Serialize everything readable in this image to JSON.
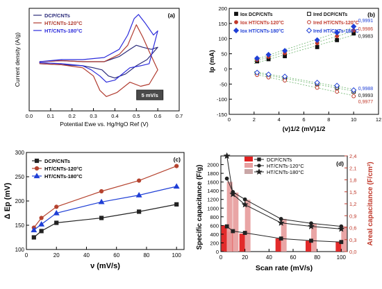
{
  "chart_data": [
    {
      "type": "line",
      "panel_label": "(a)",
      "xlabel": "Potential Ewe vs. Hg/HgO Ref (V)",
      "ylabel": "Current density (A/g)",
      "xlim": [
        0.0,
        0.7
      ],
      "xticks": [
        "0.0",
        "0.1",
        "0.2",
        "0.3",
        "0.4",
        "0.5",
        "0.6",
        "0.7"
      ],
      "y_ticks_visible": false,
      "annotation": "5 mV/s",
      "legend_position": "top-left",
      "series": [
        {
          "name": "DCP/CNTs",
          "color": "#2b2b7a",
          "x": [
            0.05,
            0.15,
            0.25,
            0.35,
            0.42,
            0.47,
            0.5,
            0.53,
            0.57,
            0.6,
            0.55,
            0.5,
            0.45,
            0.4,
            0.37,
            0.34,
            0.3,
            0.25,
            0.15,
            0.05
          ],
          "y": [
            0.52,
            0.51,
            0.52,
            0.52,
            0.47,
            0.4,
            0.36,
            0.38,
            0.4,
            0.38,
            0.5,
            0.56,
            0.64,
            0.68,
            0.66,
            0.6,
            0.58,
            0.56,
            0.55,
            0.54
          ]
        },
        {
          "name": "HT/CNTs-120°C",
          "color": "#b03a2e",
          "x": [
            0.05,
            0.15,
            0.25,
            0.35,
            0.42,
            0.46,
            0.5,
            0.53,
            0.56,
            0.6,
            0.56,
            0.52,
            0.47,
            0.41,
            0.36,
            0.33,
            0.3,
            0.25,
            0.15,
            0.05
          ],
          "y": [
            0.52,
            0.51,
            0.52,
            0.52,
            0.45,
            0.36,
            0.16,
            0.28,
            0.42,
            0.6,
            0.74,
            0.76,
            0.72,
            0.82,
            0.86,
            0.8,
            0.66,
            0.58,
            0.55,
            0.54
          ]
        },
        {
          "name": "HT/CNTs-180°C",
          "color": "#2a2adb",
          "x": [
            0.05,
            0.15,
            0.25,
            0.35,
            0.42,
            0.46,
            0.49,
            0.51,
            0.54,
            0.58,
            0.6,
            0.56,
            0.52,
            0.47,
            0.4,
            0.36,
            0.33,
            0.29,
            0.25,
            0.15,
            0.05
          ],
          "y": [
            0.52,
            0.5,
            0.5,
            0.48,
            0.4,
            0.26,
            0.1,
            0.06,
            0.14,
            0.26,
            0.22,
            0.54,
            0.56,
            0.58,
            0.7,
            0.72,
            0.66,
            0.6,
            0.56,
            0.54,
            0.53
          ]
        }
      ]
    },
    {
      "type": "scatter",
      "panel_label": "(b)",
      "xlabel": "(v)1/2 (mV)1/2",
      "ylabel": "Ip  (mA)",
      "xlim": [
        0,
        12
      ],
      "ylim": [
        -150,
        200
      ],
      "xticks": [
        0,
        2,
        4,
        6,
        8,
        10,
        12
      ],
      "yticks": [
        -150,
        -100,
        -50,
        0,
        50,
        100,
        150,
        200
      ],
      "legend_position": "top",
      "x": [
        2.24,
        3.16,
        4.47,
        7.07,
        8.66,
        10.0
      ],
      "series": [
        {
          "name": "Iox DCP/CNTs",
          "color": "#111111",
          "marker": "filled-square",
          "values": [
            25,
            32,
            42,
            72,
            95,
            117
          ],
          "r2": "0,9983"
        },
        {
          "name": "Ired DCP/CNTs",
          "color": "#111111",
          "marker": "open-square",
          "values": [
            -15,
            -22,
            -30,
            -50,
            -62,
            -75
          ],
          "r2": ""
        },
        {
          "name": "Iox HT/CNTs-120°C",
          "color": "#c0392b",
          "marker": "filled-circle",
          "values": [
            30,
            40,
            52,
            85,
            108,
            127
          ],
          "r2": "0,9986"
        },
        {
          "name": "Ired HT/CNTs-120°C",
          "color": "#c0392b",
          "marker": "open-circle",
          "values": [
            -20,
            -28,
            -38,
            -62,
            -75,
            -90
          ],
          "r2": "0,9977"
        },
        {
          "name": "Iox HT/CNTs-180°C",
          "color": "#1f3fd6",
          "marker": "filled-diamond",
          "values": [
            35,
            47,
            60,
            95,
            120,
            140
          ],
          "r2": "0,9991"
        },
        {
          "name": "Ired HT/CNTs-180°C",
          "color": "#1f3fd6",
          "marker": "open-diamond",
          "values": [
            -12,
            -18,
            -25,
            -45,
            -55,
            -70
          ],
          "r2": "0,9988"
        }
      ],
      "r2_labels": [
        {
          "text": "0,9991",
          "color": "#1f3fd6"
        },
        {
          "text": "0,9986",
          "color": "#c0392b"
        },
        {
          "text": "0,9983",
          "color": "#111111"
        },
        {
          "text": "0,9988",
          "color": "#1f3fd6"
        },
        {
          "text": "0,9993",
          "color": "#111111"
        },
        {
          "text": "0,9977",
          "color": "#c0392b"
        }
      ]
    },
    {
      "type": "line",
      "panel_label": "(c)",
      "xlabel": "ν  (mV/s)",
      "ylabel": "Δ Ep  (mV)",
      "xlim": [
        0,
        105
      ],
      "ylim": [
        100,
        300
      ],
      "xticks": [
        0,
        20,
        40,
        60,
        80,
        100
      ],
      "yticks": [
        100,
        150,
        200,
        250,
        300
      ],
      "legend_position": "top-left",
      "x": [
        5,
        10,
        20,
        50,
        75,
        100
      ],
      "series": [
        {
          "name": "DCP/CNTs",
          "color": "#222222",
          "marker": "square",
          "values": [
            125,
            138,
            155,
            165,
            178,
            193
          ]
        },
        {
          "name": "HT/CNTs-120°C",
          "color": "#b5432f",
          "marker": "circle",
          "values": [
            145,
            165,
            188,
            220,
            242,
            272
          ]
        },
        {
          "name": "HT/CNTs-180°C",
          "color": "#1f3fd6",
          "marker": "triangle",
          "values": [
            140,
            152,
            175,
            198,
            212,
            230
          ]
        }
      ]
    },
    {
      "type": "bar",
      "panel_label": "(d)",
      "xlabel": "Scan rate (mV/s)",
      "ylabel": "Specific capacitance (F/g)",
      "ylabel_right": "Areal capacitance (F/cm²)",
      "xlim": [
        0,
        105
      ],
      "ylim": [
        0,
        2200
      ],
      "ylim_right": [
        0,
        2.4
      ],
      "xticks": [
        0,
        20,
        40,
        60,
        80,
        100
      ],
      "yticks": [
        0,
        200,
        400,
        600,
        800,
        1000,
        1200,
        1400,
        1600,
        1800,
        2000
      ],
      "yticks_right": [
        "0,0",
        "0,3",
        "0,6",
        "0,9",
        "1,2",
        "1,5",
        "1,8",
        "2,1",
        "2,4"
      ],
      "legend_position": "top-right",
      "x": [
        5,
        10,
        20,
        50,
        75,
        100
      ],
      "series": [
        {
          "name": "DCP/CNTs",
          "color": "#222222",
          "marker": "square",
          "values": [
            580,
            470,
            430,
            300,
            250,
            220
          ]
        },
        {
          "name": "HT/CNTs-120°C",
          "color": "#222222",
          "marker": "circle",
          "values": [
            1680,
            1370,
            1200,
            750,
            650,
            580
          ]
        },
        {
          "name": "HT/CNTs-180°C",
          "color": "#222222",
          "marker": "star",
          "values": [
            2200,
            1320,
            1080,
            660,
            580,
            520
          ]
        }
      ],
      "bar_series": [
        {
          "name": "DCP/CNTs",
          "color": "#e02020",
          "values": [
            0.66,
            0.5,
            0.45,
            0.33,
            0.27,
            0.25
          ]
        },
        {
          "name": "HT/CNTs-120°C",
          "color": "#e8a0a0",
          "values": [
            1.75,
            1.48,
            1.3,
            0.82,
            0.7,
            0.64
          ]
        },
        {
          "name": "HT/CNTs-180°C",
          "color": "#c9a6a6",
          "values": [
            0.0,
            0.0,
            0.0,
            0.0,
            0.0,
            0.0
          ]
        }
      ]
    }
  ]
}
